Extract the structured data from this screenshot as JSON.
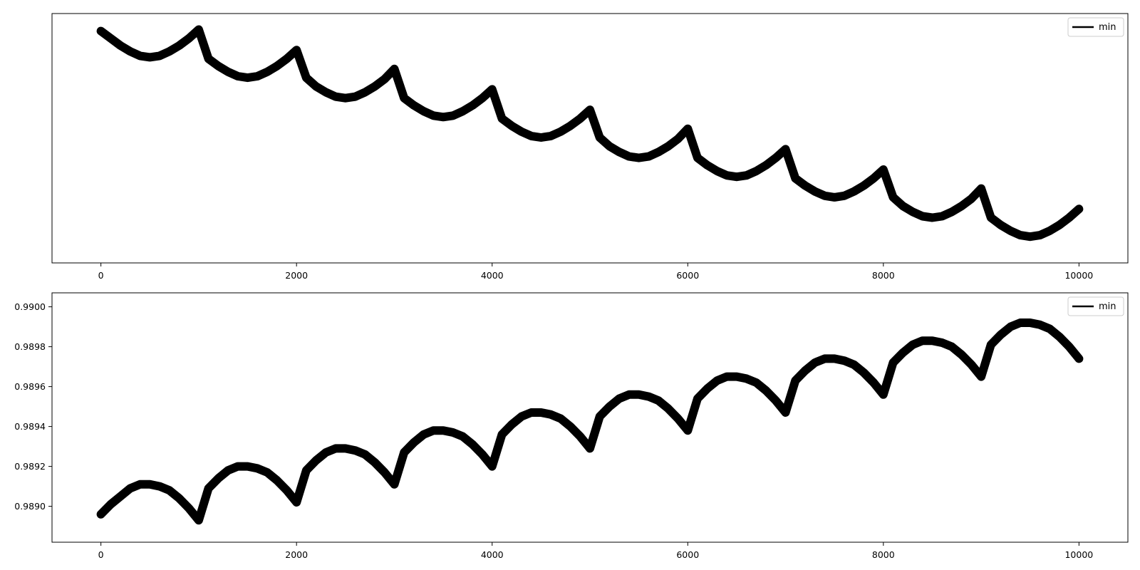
{
  "chart_data": [
    {
      "type": "line",
      "title": "",
      "xlabel": "",
      "ylabel": "",
      "xlim": [
        -500,
        10500
      ],
      "ylim": [
        0.98827,
        0.98998
      ],
      "show_ytick_labels": false,
      "grid": false,
      "legend": {
        "placement": "top-right",
        "entries": [
          "min"
        ]
      },
      "xticks": [
        0,
        2000,
        4000,
        6000,
        8000,
        10000
      ],
      "xtick_labels": [
        "0",
        "2000",
        "4000",
        "6000",
        "8000",
        "10000"
      ],
      "yticks": [],
      "ytick_labels": [],
      "series": [
        {
          "name": "min",
          "color": "#000000",
          "x": [
            0,
            100,
            200,
            300,
            400,
            500,
            600,
            700,
            800,
            900,
            1000,
            1100,
            1200,
            1300,
            1400,
            1500,
            1600,
            1700,
            1800,
            1900,
            2000,
            2100,
            2200,
            2300,
            2400,
            2500,
            2600,
            2700,
            2800,
            2900,
            3000,
            3100,
            3200,
            3300,
            3400,
            3500,
            3600,
            3700,
            3800,
            3900,
            4000,
            4100,
            4200,
            4300,
            4400,
            4500,
            4600,
            4700,
            4800,
            4900,
            5000,
            5100,
            5200,
            5300,
            5400,
            5500,
            5600,
            5700,
            5800,
            5900,
            6000,
            6100,
            6200,
            6300,
            6400,
            6500,
            6600,
            6700,
            6800,
            6900,
            7000,
            7100,
            7200,
            7300,
            7400,
            7500,
            7600,
            7700,
            7800,
            7900,
            8000,
            8100,
            8200,
            8300,
            8400,
            8500,
            8600,
            8700,
            8800,
            8900,
            9000,
            9100,
            9200,
            9300,
            9400,
            9500,
            9600,
            9700,
            9800,
            9900,
            10000
          ],
          "y": [
            0.98986,
            0.98981,
            0.98976,
            0.98972,
            0.98969,
            0.98968,
            0.98969,
            0.98972,
            0.98976,
            0.98981,
            0.98987,
            0.98967,
            0.98962,
            0.98958,
            0.98955,
            0.98954,
            0.98955,
            0.98958,
            0.98962,
            0.98967,
            0.98973,
            0.98954,
            0.98948,
            0.98944,
            0.98941,
            0.9894,
            0.98941,
            0.98944,
            0.98948,
            0.98953,
            0.9896,
            0.9894,
            0.98935,
            0.98931,
            0.98928,
            0.98927,
            0.98928,
            0.98931,
            0.98935,
            0.9894,
            0.98946,
            0.98926,
            0.98921,
            0.98917,
            0.98914,
            0.98913,
            0.98914,
            0.98917,
            0.98921,
            0.98926,
            0.98932,
            0.98913,
            0.98907,
            0.98903,
            0.989,
            0.98899,
            0.989,
            0.98903,
            0.98907,
            0.98912,
            0.98919,
            0.98899,
            0.98894,
            0.9889,
            0.98887,
            0.98886,
            0.98887,
            0.9889,
            0.98894,
            0.98899,
            0.98905,
            0.98885,
            0.9888,
            0.98876,
            0.98873,
            0.98872,
            0.98873,
            0.98876,
            0.9888,
            0.98885,
            0.98891,
            0.98872,
            0.98866,
            0.98862,
            0.98859,
            0.98858,
            0.98859,
            0.98862,
            0.98866,
            0.98871,
            0.98878,
            0.98858,
            0.98853,
            0.98849,
            0.98846,
            0.98845,
            0.98846,
            0.98849,
            0.98853,
            0.98858,
            0.98864
          ]
        }
      ]
    },
    {
      "type": "line",
      "title": "",
      "xlabel": "",
      "ylabel": "",
      "xlim": [
        -500,
        10500
      ],
      "ylim": [
        0.98882,
        0.99007
      ],
      "show_ytick_labels": true,
      "grid": false,
      "legend": {
        "placement": "top-right",
        "entries": [
          "min"
        ]
      },
      "xticks": [
        0,
        2000,
        4000,
        6000,
        8000,
        10000
      ],
      "xtick_labels": [
        "0",
        "2000",
        "4000",
        "6000",
        "8000",
        "10000"
      ],
      "yticks": [
        0.989,
        0.9892,
        0.9894,
        0.9896,
        0.9898,
        0.99
      ],
      "ytick_labels": [
        "0.9890",
        "0.9892",
        "0.9894",
        "0.9896",
        "0.9898",
        "0.9900"
      ],
      "series": [
        {
          "name": "min",
          "color": "#000000",
          "x": [
            0,
            100,
            200,
            300,
            400,
            500,
            600,
            700,
            800,
            900,
            1000,
            1100,
            1200,
            1300,
            1400,
            1500,
            1600,
            1700,
            1800,
            1900,
            2000,
            2100,
            2200,
            2300,
            2400,
            2500,
            2600,
            2700,
            2800,
            2900,
            3000,
            3100,
            3200,
            3300,
            3400,
            3500,
            3600,
            3700,
            3800,
            3900,
            4000,
            4100,
            4200,
            4300,
            4400,
            4500,
            4600,
            4700,
            4800,
            4900,
            5000,
            5100,
            5200,
            5300,
            5400,
            5500,
            5600,
            5700,
            5800,
            5900,
            6000,
            6100,
            6200,
            6300,
            6400,
            6500,
            6600,
            6700,
            6800,
            6900,
            7000,
            7100,
            7200,
            7300,
            7400,
            7500,
            7600,
            7700,
            7800,
            7900,
            8000,
            8100,
            8200,
            8300,
            8400,
            8500,
            8600,
            8700,
            8800,
            8900,
            9000,
            9100,
            9200,
            9300,
            9400,
            9500,
            9600,
            9700,
            9800,
            9900,
            10000
          ],
          "y": [
            0.98896,
            0.98901,
            0.98905,
            0.98909,
            0.98911,
            0.98911,
            0.9891,
            0.98908,
            0.98904,
            0.98899,
            0.98893,
            0.98909,
            0.98914,
            0.98918,
            0.9892,
            0.9892,
            0.98919,
            0.98917,
            0.98913,
            0.98908,
            0.98902,
            0.98918,
            0.98923,
            0.98927,
            0.98929,
            0.98929,
            0.98928,
            0.98926,
            0.98922,
            0.98917,
            0.98911,
            0.98927,
            0.98932,
            0.98936,
            0.98938,
            0.98938,
            0.98937,
            0.98935,
            0.98931,
            0.98926,
            0.9892,
            0.98936,
            0.98941,
            0.98945,
            0.98947,
            0.98947,
            0.98946,
            0.98944,
            0.9894,
            0.98935,
            0.98929,
            0.98945,
            0.9895,
            0.98954,
            0.98956,
            0.98956,
            0.98955,
            0.98953,
            0.98949,
            0.98944,
            0.98938,
            0.98954,
            0.98959,
            0.98963,
            0.98965,
            0.98965,
            0.98964,
            0.98962,
            0.98958,
            0.98953,
            0.98947,
            0.98963,
            0.98968,
            0.98972,
            0.98974,
            0.98974,
            0.98973,
            0.98971,
            0.98967,
            0.98962,
            0.98956,
            0.98972,
            0.98977,
            0.98981,
            0.98983,
            0.98983,
            0.98982,
            0.9898,
            0.98976,
            0.98971,
            0.98965,
            0.98981,
            0.98986,
            0.9899,
            0.98992,
            0.98992,
            0.98991,
            0.98989,
            0.98985,
            0.9898,
            0.98974
          ]
        }
      ]
    }
  ]
}
